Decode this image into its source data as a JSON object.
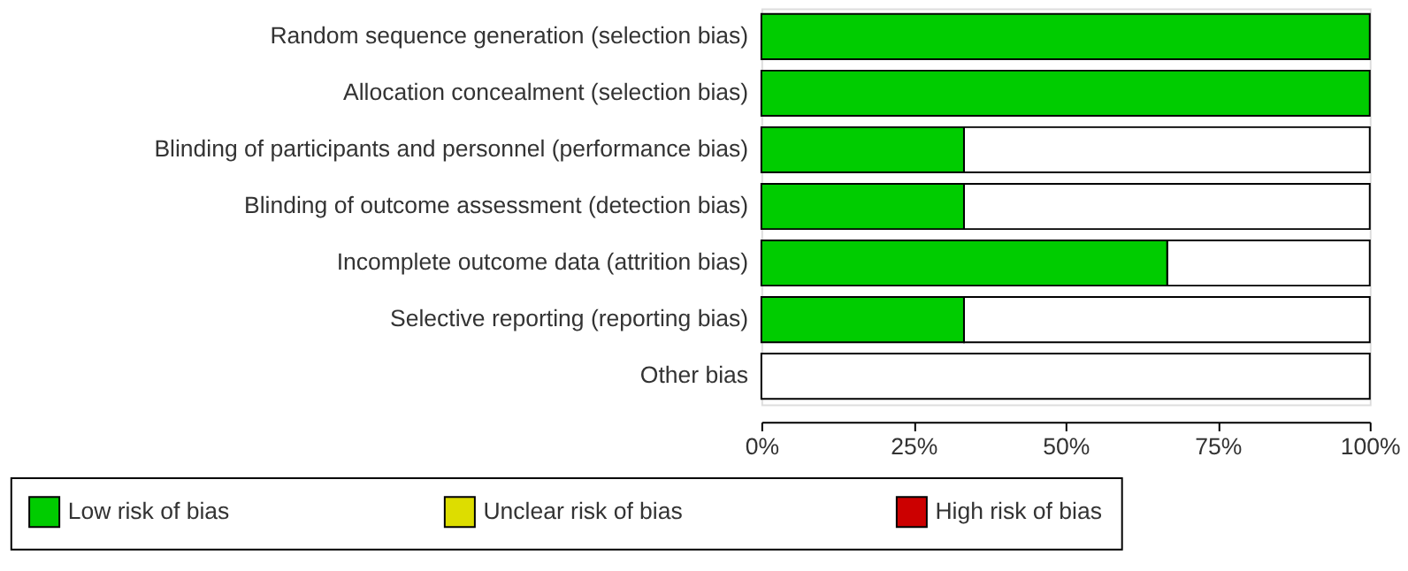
{
  "chart_data": {
    "type": "bar",
    "orientation": "horizontal",
    "stacked": true,
    "categories": [
      "Random sequence generation (selection bias)",
      "Allocation concealment (selection bias)",
      "Blinding of participants and personnel (performance bias)",
      "Blinding of outcome assessment (detection bias)",
      "Incomplete outcome data (attrition bias)",
      "Selective reporting (reporting bias)",
      "Other bias"
    ],
    "series": [
      {
        "name": "Low risk of bias",
        "color": "#00cc00",
        "values": [
          100,
          100,
          33.3,
          33.3,
          66.7,
          33.3,
          0
        ]
      },
      {
        "name": "Unclear risk of bias",
        "color": "#dddd00",
        "values": [
          0,
          0,
          0,
          0,
          0,
          0,
          0
        ]
      },
      {
        "name": "High risk of bias",
        "color": "#cc0000",
        "values": [
          0,
          0,
          0,
          0,
          0,
          0,
          0
        ]
      },
      {
        "color": "#ffffff",
        "values": [
          0,
          0,
          66.7,
          66.7,
          33.3,
          66.7,
          100
        ]
      }
    ],
    "xlim": [
      0,
      100
    ],
    "xticks": [
      {
        "value": 0,
        "label": "0%"
      },
      {
        "value": 25,
        "label": "25%"
      },
      {
        "value": 50,
        "label": "50%"
      },
      {
        "value": 75,
        "label": "75%"
      },
      {
        "value": 100,
        "label": "100%"
      }
    ],
    "grid": false,
    "legend": "bottom"
  }
}
